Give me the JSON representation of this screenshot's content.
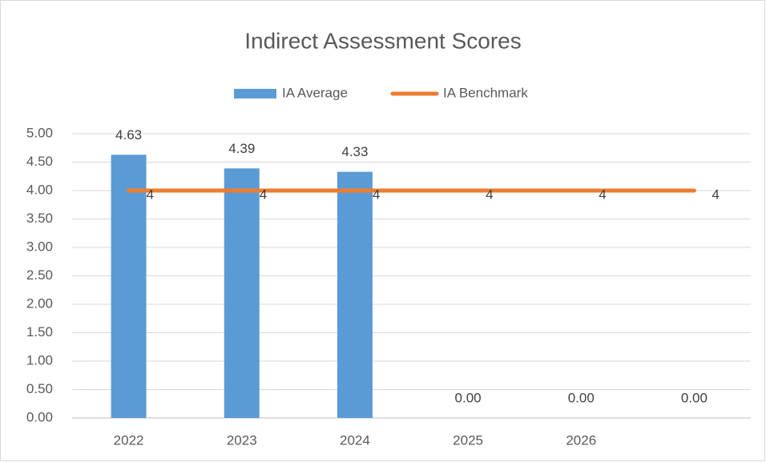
{
  "chart_data": {
    "type": "combo",
    "title": "Indirect Assessment Scores",
    "categories": [
      "2022",
      "2023",
      "2024",
      "2025",
      "2026",
      null
    ],
    "series": [
      {
        "name": "IA Average",
        "type": "bar",
        "color": "#5b9bd5",
        "values": [
          4.63,
          4.39,
          4.33,
          0,
          0,
          0
        ],
        "value_labels": [
          "4.63",
          "4.39",
          "4.33",
          "0.00",
          "0.00",
          "0.00"
        ]
      },
      {
        "name": "IA Benchmark",
        "type": "line",
        "color": "#ed7d31",
        "values": [
          4,
          4,
          4,
          4,
          4,
          4
        ]
      }
    ],
    "ylim": [
      0,
      5
    ],
    "yticks": [
      {
        "value": 0,
        "label": "0.00"
      },
      {
        "value": 0.5,
        "label": "0.50"
      },
      {
        "value": 1,
        "label": "1.00"
      },
      {
        "value": 1.5,
        "label": "1.50"
      },
      {
        "value": 2,
        "label": "2.00"
      },
      {
        "value": 2.5,
        "label": "2.50"
      },
      {
        "value": 3,
        "label": "3.00"
      },
      {
        "value": 3.5,
        "label": "3.50"
      },
      {
        "value": 4,
        "label": "4.00"
      },
      {
        "value": 4.5,
        "label": "4.50"
      },
      {
        "value": 5,
        "label": "5.00"
      }
    ],
    "grid": true,
    "legend": "top"
  }
}
